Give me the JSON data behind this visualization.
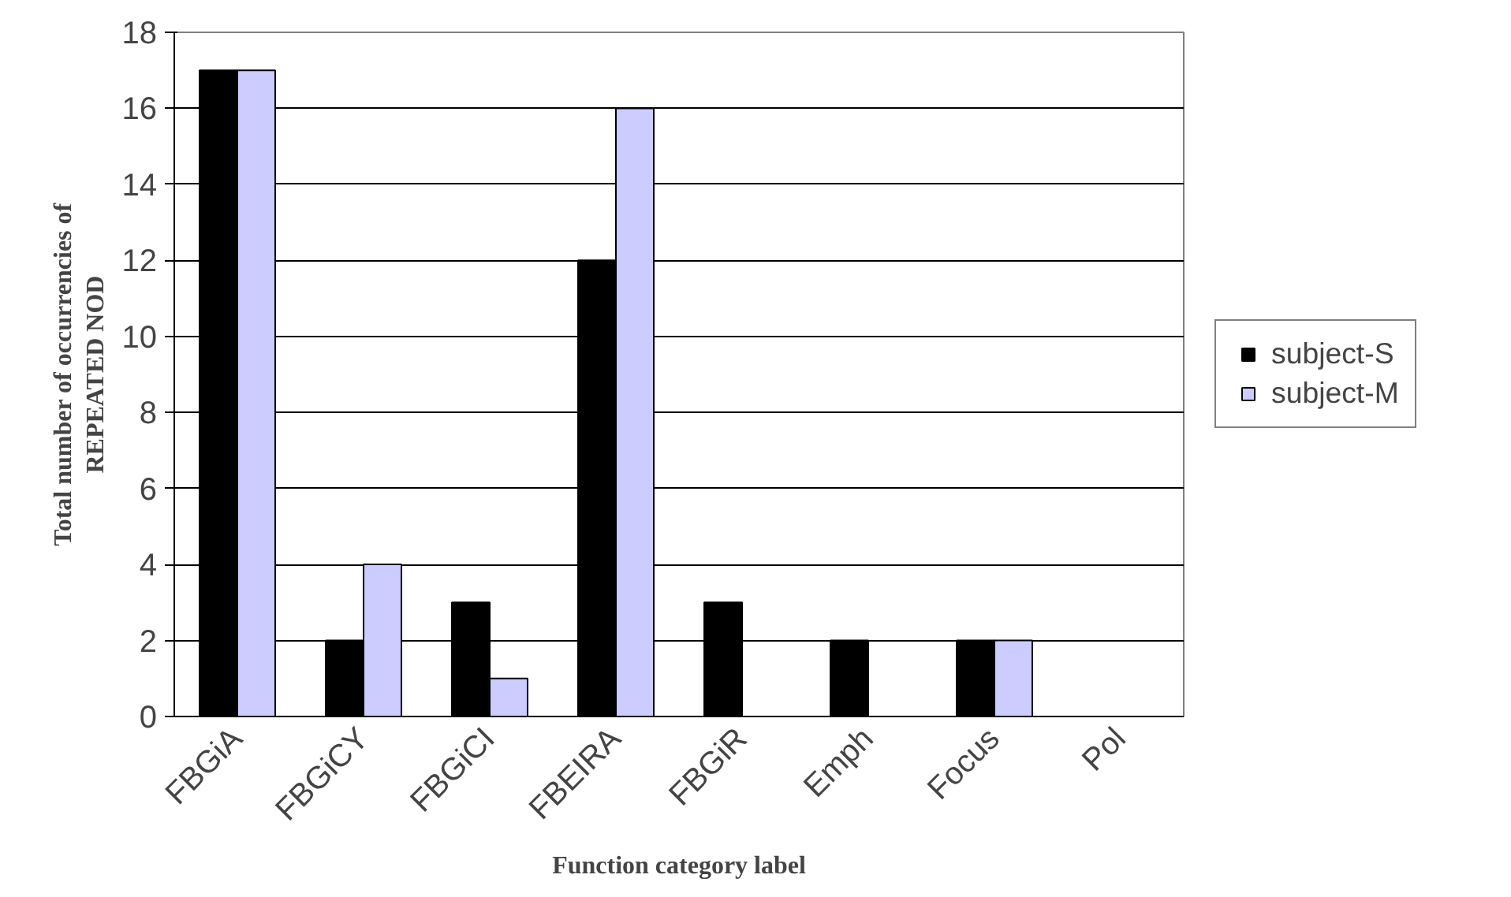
{
  "chart_data": {
    "type": "bar",
    "xlabel": "Function category label",
    "ylabel": "Total number of occurrencies of\nREPEATED NOD",
    "categories": [
      "FBGiA",
      "FBGiCY",
      "FBGiCI",
      "FBEIRA",
      "FBGiR",
      "Emph",
      "Focus",
      "Pol"
    ],
    "series": [
      {
        "name": "subject-S",
        "color": "#000000",
        "values": [
          17,
          2,
          3,
          12,
          3,
          2,
          2,
          0
        ]
      },
      {
        "name": "subject-M",
        "color": "#ccccff",
        "values": [
          17,
          4,
          1,
          16,
          0,
          0,
          2,
          0
        ]
      }
    ],
    "ylim": [
      0,
      18
    ],
    "yticks": [
      0,
      2,
      4,
      6,
      8,
      10,
      12,
      14,
      16,
      18
    ],
    "grid": "y",
    "legend": "right"
  }
}
